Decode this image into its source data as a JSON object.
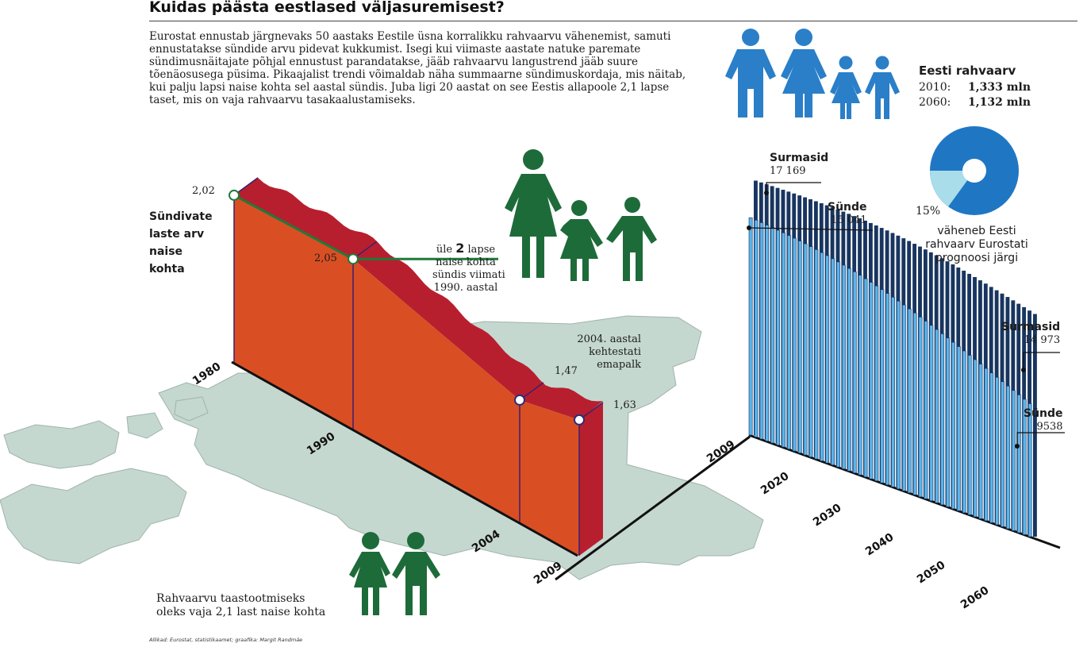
{
  "title": "Kuidas päästa eestlased väljasuremisest?",
  "intro": "Eurostat ennustab järgnevaks 50 aastaks Eestile üsna korralikku rahvaarvu vähenemist, samuti ennustatakse sündide arvu pidevat kukkumist. Isegi kui viimaste aastate natuke paremate sündimusnäitajate põhjal ennustust parandatakse, jääb rahvaarvu langustrend jääb suure tõenäosusega püsima. Pikaajalist trendi võimaldab näha summaarne sündimuskordaja, mis näitab, kui palju lapsi naise kohta sel aastal sündis. Juba ligi 20 aastat on see Eestis allapoole 2,1 lapse taset, mis on vaja rahvaarvu tasakaalustamiseks.",
  "fertility_label": [
    "Sündivate",
    "laste arv",
    "naise",
    "kohta"
  ],
  "callout_2": {
    "pre": "üle ",
    "bold": "2",
    "post": " lapse",
    "line2": "naise kohta",
    "line3": "sündis viimati",
    "line4": "1990. aastal"
  },
  "callout_2004": [
    "2004. aastal",
    "kehtestati",
    "emapalk"
  ],
  "replacement_note": [
    "Rahvaarvu taastootmiseks",
    "oleks vaja 2,1 last naise kohta"
  ],
  "population": {
    "heading": "Eesti rahvaarv",
    "rows": [
      {
        "year": "2010:",
        "value": "1,333 mln"
      },
      {
        "year": "2060:",
        "value": "1,132 mln"
      }
    ]
  },
  "decline": {
    "percent": "15%",
    "text": [
      "väheneb Eesti",
      "rahvaarv Eurostati",
      "prognoosi järgi"
    ]
  },
  "deaths_start": {
    "label": "Surmasid",
    "value": "17 169"
  },
  "births_start": {
    "label": "Sünde",
    "value": "15 041"
  },
  "deaths_end": {
    "label": "Surmasid",
    "value": "14 973"
  },
  "births_end": {
    "label": "Sünde",
    "value": "9538"
  },
  "source": "Allikad: Eurostat, statistikaamet; graafika: Margit Randmäe",
  "colors": {
    "orange": "#d94f23",
    "red": "#b81f2e",
    "green": "#1f7a3a",
    "figure_green": "#1e6b3a",
    "figure_blue": "#2a7fc8",
    "map": "#c5d8d0",
    "dark_blue": "#18355f",
    "light_blue": "#5bb4ea",
    "pie_blue": "#1f77c4",
    "pie_light": "#a8dde9"
  },
  "chart_data": [
    {
      "type": "area",
      "title": "",
      "series": [
        {
          "name": "Sündivate laste arv naise kohta",
          "x": [
            1980,
            1990,
            2004,
            2009
          ],
          "values": [
            2.02,
            2.05,
            1.47,
            1.63
          ]
        }
      ],
      "x_tick_labels": [
        "1980",
        "1990",
        "2004",
        "2009"
      ],
      "value_labels": [
        "2,02",
        "2,05",
        "1,47",
        "1,63"
      ],
      "reference_value": 2.1
    },
    {
      "type": "bar",
      "title": "",
      "x_tick_labels": [
        "2009",
        "2020",
        "2030",
        "2040",
        "2050",
        "2060"
      ],
      "series": [
        {
          "name": "Surmasid",
          "x": [
            2009,
            2060
          ],
          "values": [
            17169,
            14973
          ]
        },
        {
          "name": "Sünde",
          "x": [
            2009,
            2060
          ],
          "values": [
            15041,
            9538
          ]
        }
      ]
    },
    {
      "type": "pie",
      "title": "",
      "values": [
        15,
        85
      ],
      "labels": [
        "15%",
        ""
      ]
    }
  ]
}
